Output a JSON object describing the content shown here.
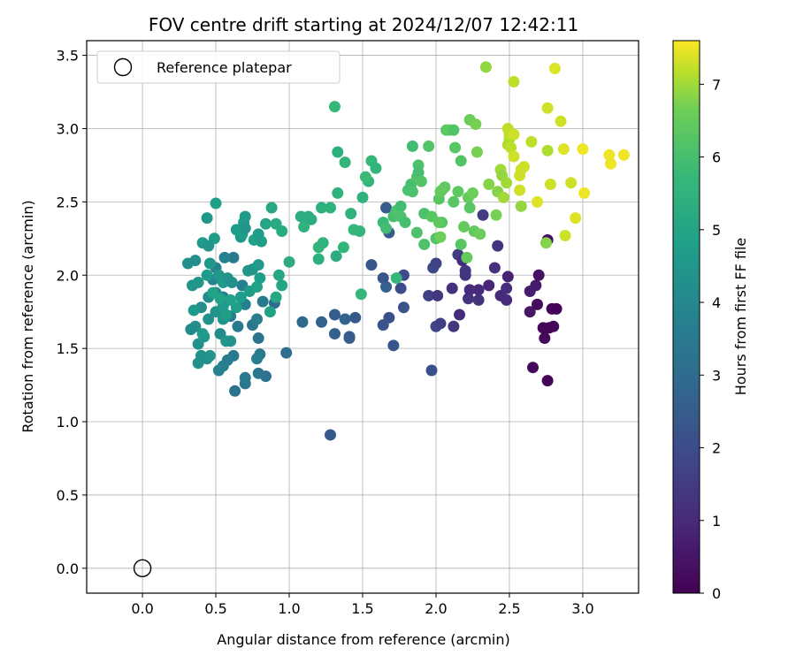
{
  "chart_data": {
    "type": "scatter",
    "title": "FOV centre drift starting at 2024/12/07 12:42:11",
    "xlabel": "Angular distance from reference (arcmin)",
    "ylabel": "Rotation from reference (arcmin)",
    "xlim": [
      -0.38,
      3.38
    ],
    "ylim": [
      -0.17,
      3.6
    ],
    "xticks": [
      "0.0",
      "0.5",
      "1.0",
      "1.5",
      "2.0",
      "2.5",
      "3.0"
    ],
    "xtick_values": [
      0,
      0.5,
      1.0,
      1.5,
      2.0,
      2.5,
      3.0
    ],
    "yticks": [
      "0.0",
      "0.5",
      "1.0",
      "1.5",
      "2.0",
      "2.5",
      "3.0",
      "3.5"
    ],
    "ytick_values": [
      0,
      0.5,
      1.0,
      1.5,
      2.0,
      2.5,
      3.0,
      3.5
    ],
    "grid": true,
    "legend": {
      "position": "top-left",
      "label": "Reference platepar"
    },
    "reference_point": {
      "x": 0.0,
      "y": 0.0
    },
    "colorbar": {
      "label": "Hours from first FF file",
      "colormap": "viridis",
      "range": [
        0,
        7.6
      ],
      "ticks": [
        "0",
        "1",
        "2",
        "3",
        "4",
        "5",
        "6",
        "7"
      ],
      "tick_values": [
        0,
        1,
        2,
        3,
        4,
        5,
        6,
        7
      ]
    },
    "points": [
      [
        2.76,
        1.28,
        0.1
      ],
      [
        2.66,
        1.37,
        0.2
      ],
      [
        2.74,
        1.57,
        0.2
      ],
      [
        2.77,
        1.64,
        0.1
      ],
      [
        2.8,
        1.65,
        0.15
      ],
      [
        2.79,
        1.77,
        0.1
      ],
      [
        2.82,
        1.77,
        0.1
      ],
      [
        2.73,
        1.64,
        0.15
      ],
      [
        2.64,
        1.75,
        0.5
      ],
      [
        2.69,
        1.8,
        0.3
      ],
      [
        2.7,
        2.0,
        0.4
      ],
      [
        2.68,
        1.93,
        0.6
      ],
      [
        2.64,
        1.89,
        0.7
      ],
      [
        2.76,
        2.24,
        0.3
      ],
      [
        2.49,
        1.99,
        0.8
      ],
      [
        2.44,
        1.86,
        1.0
      ],
      [
        2.48,
        1.91,
        1.1
      ],
      [
        2.48,
        1.83,
        1.0
      ],
      [
        2.36,
        1.93,
        0.9
      ],
      [
        2.4,
        2.05,
        1.2
      ],
      [
        2.42,
        2.2,
        1.3
      ],
      [
        2.29,
        1.9,
        1.0
      ],
      [
        2.29,
        1.83,
        1.2
      ],
      [
        2.22,
        1.84,
        1.3
      ],
      [
        2.23,
        1.9,
        1.1
      ],
      [
        2.16,
        1.73,
        1.1
      ],
      [
        2.12,
        1.65,
        1.4
      ],
      [
        2.11,
        1.91,
        1.2
      ],
      [
        2.15,
        2.14,
        1.5
      ],
      [
        2.2,
        2.0,
        1.3
      ],
      [
        2.2,
        2.03,
        1.4
      ],
      [
        2.18,
        2.1,
        1.1
      ],
      [
        2.32,
        2.41,
        1.5
      ],
      [
        2.0,
        1.65,
        1.8
      ],
      [
        2.03,
        1.67,
        1.6
      ],
      [
        1.98,
        2.05,
        1.9
      ],
      [
        2.0,
        2.08,
        1.7
      ],
      [
        1.95,
        1.86,
        1.6
      ],
      [
        2.01,
        1.86,
        1.4
      ],
      [
        1.97,
        1.35,
        2.1
      ],
      [
        1.78,
        2.0,
        2.0
      ],
      [
        1.78,
        1.78,
        2.2
      ],
      [
        1.76,
        1.91,
        2.0
      ],
      [
        1.68,
        1.71,
        2.1
      ],
      [
        1.64,
        1.66,
        2.2
      ],
      [
        1.71,
        1.52,
        2.3
      ],
      [
        1.66,
        1.92,
        2.6
      ],
      [
        1.64,
        1.98,
        2.3
      ],
      [
        1.68,
        2.29,
        2.4
      ],
      [
        1.66,
        2.46,
        2.5
      ],
      [
        1.56,
        2.07,
        2.3
      ],
      [
        1.45,
        1.71,
        2.4
      ],
      [
        1.41,
        1.58,
        2.6
      ],
      [
        1.41,
        1.57,
        2.5
      ],
      [
        1.38,
        1.7,
        2.7
      ],
      [
        1.31,
        1.73,
        2.5
      ],
      [
        1.31,
        1.6,
        2.6
      ],
      [
        1.22,
        1.68,
        2.7
      ],
      [
        1.28,
        0.91,
        2.4
      ],
      [
        1.09,
        1.68,
        2.9
      ],
      [
        0.98,
        1.47,
        3.1
      ],
      [
        0.9,
        1.81,
        3.0
      ],
      [
        0.48,
        1.97,
        3.9
      ],
      [
        0.5,
        2.05,
        3.8
      ],
      [
        0.55,
        1.85,
        3.7
      ],
      [
        0.6,
        1.72,
        3.6
      ],
      [
        0.65,
        1.65,
        3.5
      ],
      [
        0.62,
        1.45,
        3.5
      ],
      [
        0.58,
        1.42,
        3.6
      ],
      [
        0.55,
        1.38,
        3.7
      ],
      [
        0.52,
        1.35,
        3.8
      ],
      [
        0.63,
        1.21,
        3.3
      ],
      [
        0.7,
        1.26,
        3.4
      ],
      [
        0.7,
        1.3,
        3.5
      ],
      [
        0.79,
        1.33,
        3.4
      ],
      [
        0.84,
        1.31,
        3.2
      ],
      [
        0.8,
        1.46,
        3.4
      ],
      [
        0.78,
        1.43,
        3.6
      ],
      [
        0.79,
        1.57,
        3.3
      ],
      [
        0.75,
        1.66,
        3.4
      ],
      [
        0.78,
        1.7,
        3.6
      ],
      [
        0.82,
        1.82,
        3.5
      ],
      [
        0.7,
        1.8,
        3.7
      ],
      [
        0.68,
        1.93,
        3.6
      ],
      [
        0.62,
        2.12,
        3.5
      ],
      [
        0.56,
        2.12,
        3.8
      ],
      [
        0.5,
        1.88,
        4.0
      ],
      [
        0.45,
        1.85,
        4.1
      ],
      [
        0.4,
        1.78,
        4.2
      ],
      [
        0.36,
        1.65,
        4.2
      ],
      [
        0.33,
        1.63,
        4.1
      ],
      [
        0.38,
        1.53,
        4.3
      ],
      [
        0.4,
        1.45,
        4.3
      ],
      [
        0.38,
        1.4,
        4.3
      ],
      [
        0.44,
        1.43,
        4.2
      ],
      [
        0.46,
        1.45,
        4.4
      ],
      [
        0.53,
        1.6,
        4.1
      ],
      [
        0.57,
        1.55,
        4.5
      ],
      [
        0.6,
        1.55,
        4.4
      ],
      [
        0.55,
        1.7,
        4.4
      ],
      [
        0.5,
        1.75,
        4.4
      ],
      [
        0.45,
        1.7,
        4.3
      ],
      [
        0.42,
        1.58,
        4.5
      ],
      [
        0.41,
        1.6,
        4.6
      ],
      [
        0.35,
        1.76,
        4.6
      ],
      [
        0.31,
        2.08,
        4.3
      ],
      [
        0.36,
        2.1,
        4.2
      ],
      [
        0.34,
        1.93,
        4.4
      ],
      [
        0.38,
        1.95,
        4.5
      ],
      [
        0.44,
        2.0,
        4.6
      ],
      [
        0.46,
        2.08,
        4.5
      ],
      [
        0.41,
        2.22,
        4.6
      ],
      [
        0.45,
        2.2,
        4.4
      ],
      [
        0.44,
        2.39,
        4.5
      ],
      [
        0.5,
        2.49,
        4.8
      ],
      [
        0.49,
        2.25,
        4.7
      ],
      [
        0.52,
        2.0,
        4.5
      ],
      [
        0.55,
        1.95,
        4.6
      ],
      [
        0.58,
        1.98,
        4.4
      ],
      [
        0.61,
        1.95,
        4.3
      ],
      [
        0.64,
        2.31,
        4.7
      ],
      [
        0.67,
        2.26,
        4.5
      ],
      [
        0.68,
        2.28,
        4.8
      ],
      [
        0.69,
        2.36,
        4.7
      ],
      [
        0.7,
        2.4,
        4.6
      ],
      [
        0.7,
        2.32,
        4.4
      ],
      [
        0.75,
        2.04,
        4.5
      ],
      [
        0.79,
        2.07,
        4.6
      ],
      [
        0.76,
        2.24,
        4.9
      ],
      [
        0.79,
        2.28,
        4.7
      ],
      [
        0.81,
        2.23,
        4.8
      ],
      [
        0.84,
        2.35,
        5.0
      ],
      [
        0.88,
        2.46,
        5.1
      ],
      [
        0.91,
        2.35,
        5.2
      ],
      [
        0.95,
        2.3,
        5.2
      ],
      [
        0.93,
        2.0,
        5.1
      ],
      [
        0.95,
        1.93,
        5.0
      ],
      [
        0.91,
        1.85,
        5.1
      ],
      [
        0.87,
        1.75,
        4.9
      ],
      [
        0.73,
        1.89,
        4.7
      ],
      [
        0.78,
        1.92,
        4.9
      ],
      [
        0.8,
        1.98,
        4.8
      ],
      [
        0.72,
        2.03,
        4.5
      ],
      [
        0.67,
        1.85,
        4.7
      ],
      [
        0.64,
        1.78,
        4.8
      ],
      [
        0.6,
        1.83,
        4.9
      ],
      [
        0.57,
        1.73,
        4.8
      ],
      [
        0.55,
        1.79,
        4.6
      ],
      [
        0.53,
        1.84,
        4.9
      ],
      [
        0.48,
        1.88,
        4.9
      ],
      [
        1.0,
        2.09,
        5.3
      ],
      [
        1.08,
        2.4,
        5.3
      ],
      [
        1.13,
        2.4,
        5.4
      ],
      [
        1.15,
        2.38,
        5.3
      ],
      [
        1.1,
        2.33,
        5.5
      ],
      [
        1.2,
        2.11,
        5.4
      ],
      [
        1.2,
        2.19,
        5.6
      ],
      [
        1.23,
        2.22,
        5.5
      ],
      [
        1.28,
        2.46,
        5.5
      ],
      [
        1.22,
        2.46,
        5.4
      ],
      [
        1.32,
        2.13,
        5.3
      ],
      [
        1.37,
        2.19,
        5.6
      ],
      [
        1.42,
        2.42,
        5.5
      ],
      [
        1.44,
        2.31,
        5.7
      ],
      [
        1.48,
        2.3,
        5.6
      ],
      [
        1.5,
        2.53,
        5.5
      ],
      [
        1.49,
        1.87,
        5.7
      ],
      [
        1.54,
        2.64,
        5.6
      ],
      [
        1.52,
        2.67,
        5.8
      ],
      [
        1.56,
        2.78,
        5.7
      ],
      [
        1.38,
        2.77,
        5.6
      ],
      [
        1.33,
        2.84,
        5.4
      ],
      [
        1.33,
        2.56,
        5.5
      ],
      [
        1.31,
        3.15,
        5.7
      ],
      [
        1.59,
        2.73,
        5.6
      ],
      [
        1.73,
        1.98,
        5.7
      ],
      [
        1.64,
        2.36,
        5.8
      ],
      [
        1.66,
        2.32,
        5.9
      ],
      [
        1.71,
        2.4,
        6.0
      ],
      [
        1.73,
        2.44,
        6.1
      ],
      [
        1.76,
        2.47,
        5.9
      ],
      [
        1.76,
        2.4,
        6.1
      ],
      [
        1.79,
        2.36,
        6.0
      ],
      [
        1.81,
        2.58,
        6.1
      ],
      [
        1.83,
        2.62,
        6.0
      ],
      [
        1.84,
        2.57,
        6.1
      ],
      [
        1.87,
        2.67,
        6.2
      ],
      [
        1.88,
        2.75,
        6.1
      ],
      [
        1.88,
        2.7,
        6.0
      ],
      [
        1.9,
        2.64,
        6.2
      ],
      [
        1.84,
        2.88,
        5.9
      ],
      [
        1.95,
        2.88,
        6.2
      ],
      [
        1.87,
        2.29,
        6.1
      ],
      [
        1.92,
        2.21,
        6.1
      ],
      [
        1.92,
        2.42,
        6.1
      ],
      [
        1.97,
        2.4,
        6.3
      ],
      [
        2.0,
        2.25,
        6.2
      ],
      [
        2.02,
        2.52,
        6.3
      ],
      [
        2.04,
        2.58,
        6.3
      ],
      [
        2.04,
        2.36,
        6.2
      ],
      [
        2.06,
        2.6,
        6.4
      ],
      [
        2.07,
        2.99,
        6.3
      ],
      [
        2.09,
        2.99,
        6.4
      ],
      [
        2.12,
        2.99,
        6.2
      ],
      [
        2.12,
        2.5,
        6.3
      ],
      [
        2.13,
        2.87,
        6.3
      ],
      [
        2.15,
        2.57,
        6.4
      ],
      [
        2.17,
        2.21,
        6.3
      ],
      [
        2.17,
        2.78,
        6.2
      ],
      [
        2.19,
        2.33,
        6.5
      ],
      [
        2.21,
        2.12,
        6.5
      ],
      [
        2.22,
        2.53,
        6.5
      ],
      [
        2.23,
        3.06,
        6.6
      ],
      [
        2.23,
        2.46,
        6.3
      ],
      [
        2.25,
        2.56,
        6.6
      ],
      [
        2.26,
        2.3,
        6.5
      ],
      [
        2.27,
        3.03,
        6.7
      ],
      [
        2.28,
        2.84,
        6.7
      ],
      [
        2.3,
        2.28,
        6.6
      ],
      [
        2.02,
        2.36,
        6.4
      ],
      [
        2.03,
        2.26,
        6.6
      ],
      [
        2.03,
        2.57,
        6.5
      ],
      [
        2.36,
        2.62,
        6.8
      ],
      [
        2.41,
        2.41,
        6.7
      ],
      [
        2.42,
        2.57,
        6.8
      ],
      [
        2.44,
        2.72,
        7.0
      ],
      [
        2.45,
        2.68,
        6.9
      ],
      [
        2.46,
        2.53,
        7.0
      ],
      [
        2.48,
        2.63,
        7.0
      ],
      [
        2.49,
        2.89,
        7.1
      ],
      [
        2.49,
        3.0,
        7.2
      ],
      [
        2.5,
        2.93,
        7.1
      ],
      [
        2.51,
        2.87,
        7.2
      ],
      [
        2.5,
        2.96,
        7.2
      ],
      [
        2.53,
        2.81,
        7.3
      ],
      [
        2.53,
        2.96,
        7.3
      ],
      [
        2.53,
        3.32,
        7.2
      ],
      [
        2.57,
        2.68,
        7.3
      ],
      [
        2.57,
        2.58,
        7.3
      ],
      [
        2.58,
        2.47,
        6.9
      ],
      [
        2.58,
        2.72,
        7.3
      ],
      [
        2.6,
        2.74,
        7.3
      ],
      [
        2.34,
        3.42,
        6.9
      ],
      [
        2.65,
        2.91,
        7.2
      ],
      [
        2.75,
        2.22,
        6.8
      ],
      [
        2.76,
        2.85,
        7.1
      ],
      [
        2.76,
        3.14,
        7.3
      ],
      [
        2.78,
        2.62,
        7.3
      ],
      [
        2.81,
        3.41,
        7.4
      ],
      [
        2.85,
        3.05,
        7.3
      ],
      [
        2.87,
        2.86,
        7.4
      ],
      [
        2.88,
        2.27,
        7.3
      ],
      [
        2.92,
        2.63,
        7.3
      ],
      [
        2.95,
        2.39,
        7.4
      ],
      [
        3.0,
        2.86,
        7.5
      ],
      [
        3.01,
        2.56,
        7.5
      ],
      [
        3.18,
        2.82,
        7.5
      ],
      [
        3.19,
        2.76,
        7.5
      ],
      [
        3.28,
        2.82,
        7.5
      ],
      [
        2.69,
        2.5,
        7.4
      ]
    ]
  }
}
